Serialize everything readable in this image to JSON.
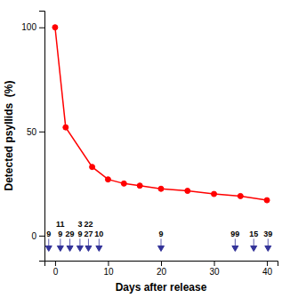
{
  "chart_data": {
    "type": "line",
    "x": [
      0,
      2,
      7,
      10,
      13,
      16,
      20,
      25,
      30,
      35,
      40
    ],
    "values": [
      100,
      52,
      33,
      27,
      25,
      24,
      22.5,
      21.5,
      20,
      19,
      17
    ],
    "color": "#FF0000",
    "marker": "circle",
    "xlim": [
      -2,
      42
    ],
    "ylim": [
      -12,
      108
    ],
    "xticks": [
      0,
      10,
      20,
      30,
      40
    ],
    "yticks": [
      0,
      50,
      100
    ],
    "x_label": "Days after release",
    "y_label": "Detected psyllids  (%)",
    "annotations": [
      {
        "x": -1.2,
        "y": -7.5,
        "text": "9",
        "color": "#333399"
      },
      {
        "x": 1.0,
        "y": -7.5,
        "text": "9",
        "text_above": "11",
        "color": "#333399"
      },
      {
        "x": 2.8,
        "y": -7.5,
        "text": "29",
        "color": "#333399"
      },
      {
        "x": 4.7,
        "y": -7.5,
        "text": "9",
        "text_above": "3",
        "color": "#333399"
      },
      {
        "x": 6.3,
        "y": -7.5,
        "text": "27",
        "text_above": "22",
        "color": "#333399"
      },
      {
        "x": 8.3,
        "y": -7.5,
        "text": "10",
        "color": "#333399"
      },
      {
        "x": 20.0,
        "y": -7.5,
        "text": "9",
        "color": "#333399"
      },
      {
        "x": 34.0,
        "y": -7.5,
        "text": "99",
        "color": "#333399"
      },
      {
        "x": 37.5,
        "y": -7.5,
        "text": "15",
        "color": "#333399"
      },
      {
        "x": 40.2,
        "y": -7.5,
        "text": "39",
        "color": "#333399"
      }
    ]
  }
}
